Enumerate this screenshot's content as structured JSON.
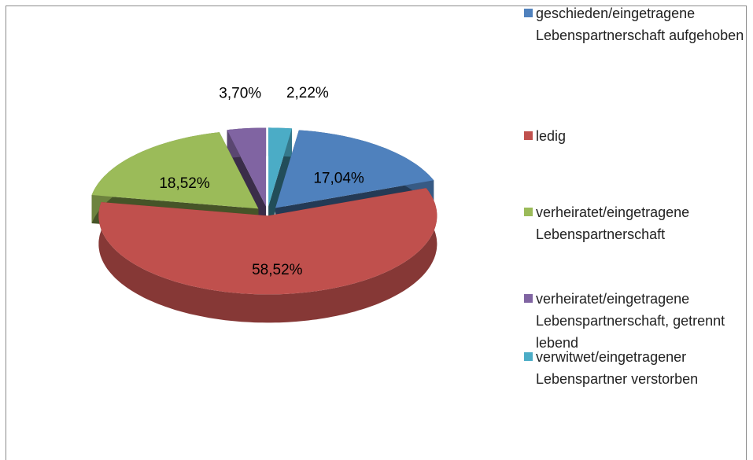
{
  "chart_data": {
    "type": "pie",
    "categories": [
      "geschieden/eingetragene Lebenspartnerschaft aufgehoben",
      "ledig",
      "verheiratet/eingetragene Lebenspartnerschaft",
      "verheiratet/eingetragene Lebenspartnerschaft, getrennt lebend",
      "verwitwet/eingetragener Lebenspartner verstorben"
    ],
    "values": [
      17.04,
      58.52,
      18.52,
      3.7,
      2.22
    ],
    "value_labels": [
      "17,04%",
      "58,52%",
      "18,52%",
      "3,70%",
      "2,22%"
    ],
    "colors": [
      "#4f81bd",
      "#c0504d",
      "#9bbb59",
      "#8064a2",
      "#4bacc6"
    ],
    "legend": "right"
  }
}
